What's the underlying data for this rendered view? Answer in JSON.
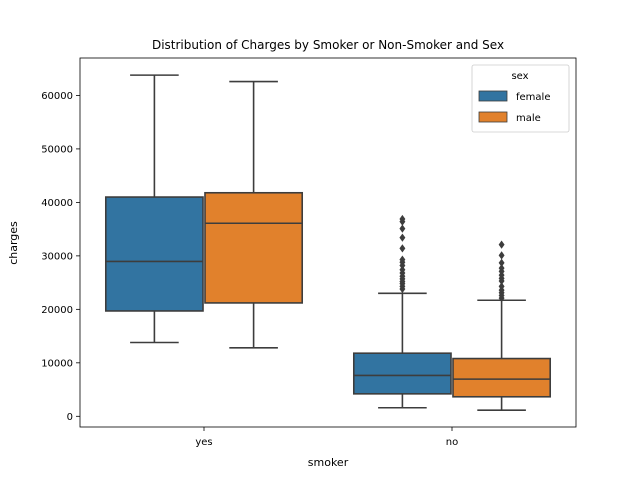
{
  "chart_data": {
    "type": "box",
    "title": "Distribution of Charges by Smoker or Non-Smoker and Sex",
    "xlabel": "smoker",
    "ylabel": "charges",
    "categories": [
      "yes",
      "no"
    ],
    "ylim": [
      -2000,
      67000
    ],
    "yticks": [
      0,
      10000,
      20000,
      30000,
      40000,
      50000,
      60000
    ],
    "ytick_labels": [
      "0",
      "10000",
      "20000",
      "30000",
      "40000",
      "50000",
      "60000"
    ],
    "grid": false,
    "legend": {
      "title": "sex",
      "position": "top-right"
    },
    "series": [
      {
        "name": "female",
        "color": "#3274a1",
        "boxes": [
          {
            "category": "yes",
            "whisker_low": 13800,
            "q1": 19700,
            "median": 28950,
            "q3": 41000,
            "whisker_high": 63800,
            "outliers": []
          },
          {
            "category": "no",
            "whisker_low": 1600,
            "q1": 4200,
            "median": 7650,
            "q3": 11800,
            "whisker_high": 23000,
            "outliers": [
              23800,
              24300,
              24800,
              25200,
              25700,
              26200,
              26800,
              27400,
              28200,
              28800,
              29300,
              31400,
              33400,
              35100,
              36400,
              36900
            ]
          }
        ]
      },
      {
        "name": "male",
        "color": "#e1812c",
        "boxes": [
          {
            "category": "yes",
            "whisker_low": 12800,
            "q1": 21200,
            "median": 36100,
            "q3": 41800,
            "whisker_high": 62600,
            "outliers": []
          },
          {
            "category": "no",
            "whisker_low": 1150,
            "q1": 3650,
            "median": 6950,
            "q3": 10800,
            "whisker_high": 21700,
            "outliers": [
              22100,
              22600,
              23100,
              23600,
              24300,
              25300,
              25800,
              26400,
              27100,
              27700,
              28700,
              30100,
              32100
            ]
          }
        ]
      }
    ]
  }
}
